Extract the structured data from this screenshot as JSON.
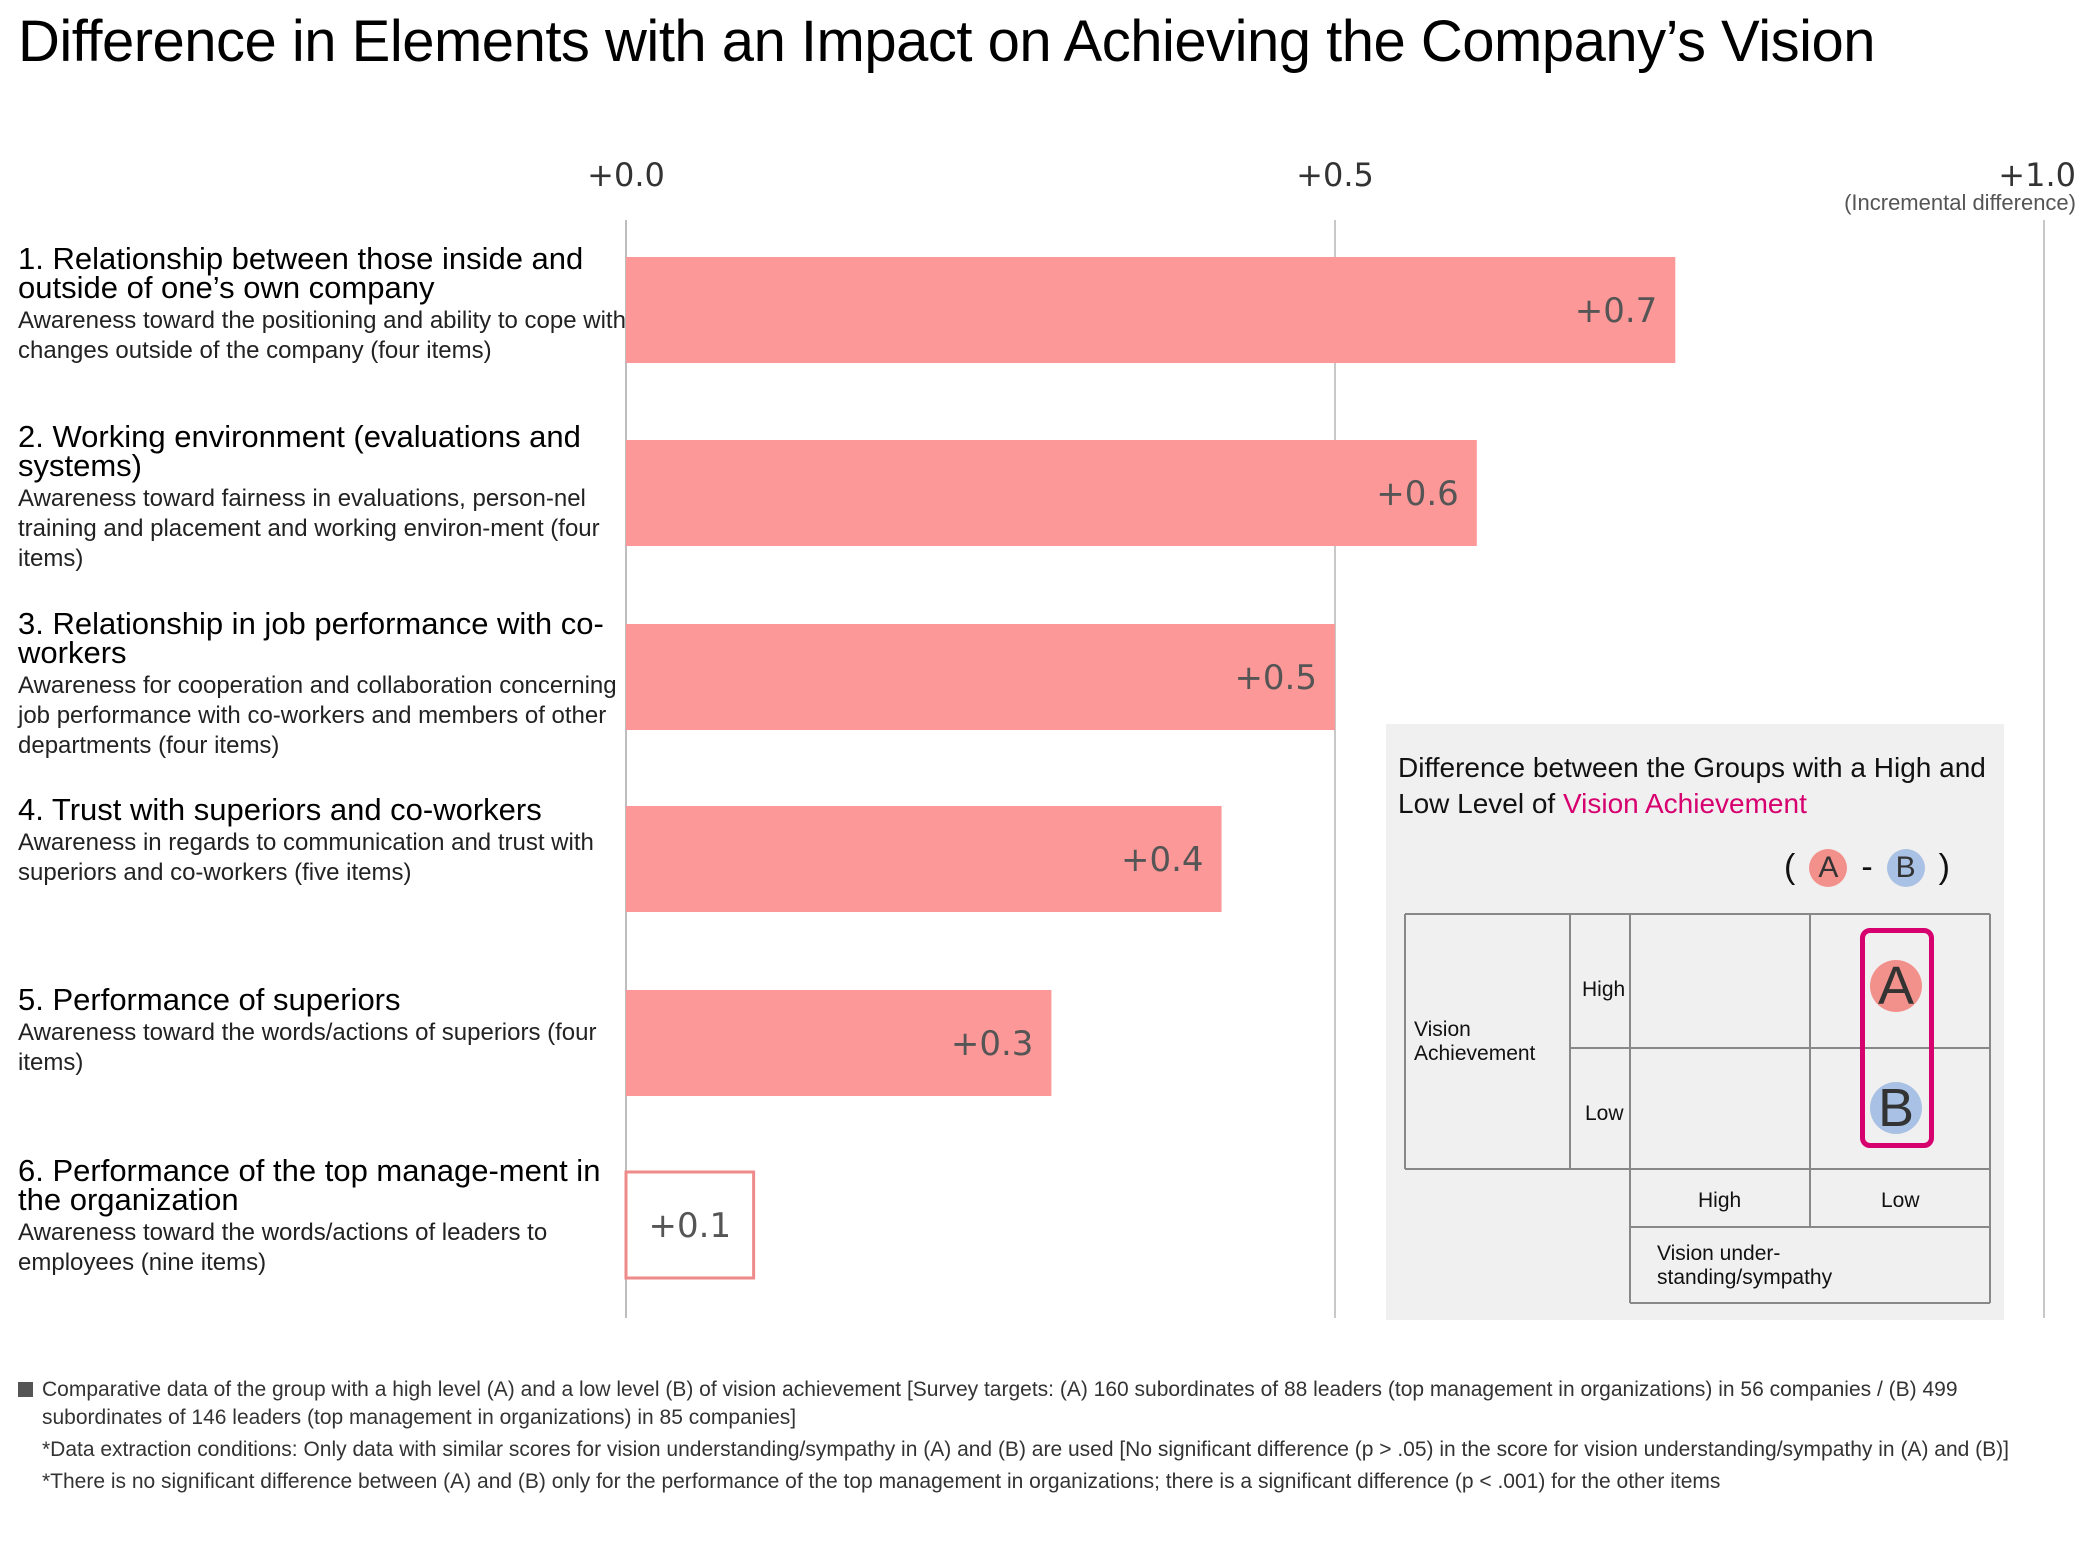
{
  "title": "Difference in Elements with an Impact on Achieving the Company’s Vision",
  "chart_data": {
    "type": "bar",
    "orientation": "horizontal",
    "categories": [
      "1. Relationship between those inside and outside of one’s own company",
      "2. Working environment (evaluations and systems)",
      "3. Relationship in job performance with co-workers",
      "4. Trust with superiors and co-workers",
      "5. Performance of superiors",
      "6. Performance of the top management in the organization"
    ],
    "values": [
      0.74,
      0.6,
      0.5,
      0.42,
      0.3,
      0.09
    ],
    "value_labels": [
      "+0.7",
      "+0.6",
      "+0.5",
      "+0.4",
      "+0.3",
      "+0.1"
    ],
    "significant": [
      true,
      true,
      true,
      true,
      true,
      false
    ],
    "xlim": [
      0,
      1.0
    ],
    "x_ticks": [
      "+0.0",
      "+0.5",
      "+1.0"
    ],
    "x_tick_values": [
      0,
      0.5,
      1.0
    ],
    "x_unit": "(Incremental difference)",
    "grid": true,
    "colors": {
      "bar": "#fc9898",
      "outline_bar": "#ef8a8a",
      "grid": "#c8c8c8"
    }
  },
  "items": [
    {
      "head": "1. Relationship between those inside and outside of one’s own company",
      "desc": "Awareness toward the positioning and ability to cope with changes outside of the company (four items)"
    },
    {
      "head": "2. Working environment (evaluations and systems)",
      "desc": "Awareness toward fairness in evaluations, person-nel training and placement and working environ-ment (four items)"
    },
    {
      "head": "3. Relationship in job performance with co-workers",
      "desc": "Awareness for cooperation and collaboration concerning job performance with co-workers and members of other departments (four items)"
    },
    {
      "head": "4. Trust with superiors and co-workers",
      "desc": "Awareness in regards to communication and trust with superiors and co-workers (five items)"
    },
    {
      "head": "5. Performance of superiors",
      "desc": "Awareness toward the words/actions of superiors (four items)"
    },
    {
      "head": "6. Performance of the top manage-ment in the organization",
      "desc": "Awareness toward the words/actions of leaders to employees (nine items)"
    }
  ],
  "legend": {
    "title_part1": "Difference between the Groups with a High and Low Level of ",
    "title_accent": "Vision Achievement",
    "formula_open": "(",
    "formula_a": "A",
    "formula_minus": "-",
    "formula_b": "B",
    "formula_close": ")",
    "row_axis": "Vision Achievement",
    "row_high": "High",
    "row_low": "Low",
    "col_high": "High",
    "col_low": "Low",
    "col_axis": "Vision under-standing/sympathy",
    "cell_a": "A",
    "cell_b": "B",
    "accent_color": "#d6006f",
    "a_color": "#f2908c",
    "b_color": "#a9c1e4"
  },
  "notes": [
    "Comparative data of the group with a high level (A) and a low level (B) of vision achievement [Survey targets: (A) 160 subordinates of 88 leaders (top management in organizations) in 56 companies / (B) 499 subordinates of 146 leaders (top management in organizations) in 85 companies]",
    "*Data extraction conditions: Only data with similar scores for vision understanding/sympathy in (A) and (B) are used [No significant difference (p > .05) in the score for vision understanding/sympathy in (A) and (B)]",
    "*There is no significant difference between (A) and (B) only for the performance of the top management in organizations; there is a significant difference (p < .001) for the other items"
  ]
}
